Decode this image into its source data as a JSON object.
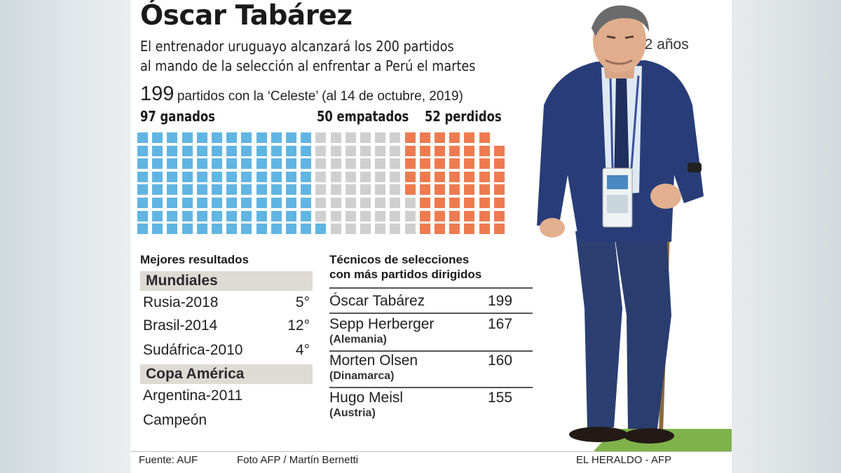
{
  "header": {
    "title": "Óscar Tabárez",
    "subtitle_line1": "El entrenador uruguayo alcanzará los 200 partidos",
    "subtitle_line2": "al mando de la selección al enfrentar a Perú el martes",
    "age": "72 años",
    "total_number": "199",
    "total_text": "partidos con la ‘Celeste’ (al 14 de octubre, 2019)"
  },
  "chart_data": {
    "type": "waffle",
    "total": 199,
    "categories": [
      {
        "label": "97 ganados",
        "value": 97,
        "color": "#61b5e2"
      },
      {
        "label": "50 empatados",
        "value": 50,
        "color": "#cfcfcf"
      },
      {
        "label": "52 perdidos",
        "value": 52,
        "color": "#ee7b50"
      }
    ]
  },
  "best_results": {
    "heading": "Mejores resultados",
    "mundiales": {
      "label": "Mundiales",
      "items": [
        {
          "name": "Rusia-2018",
          "result": "5°"
        },
        {
          "name": "Brasil-2014",
          "result": "12°"
        },
        {
          "name": "Sudáfrica-2010",
          "result": "4°"
        }
      ]
    },
    "copa": {
      "label": "Copa América",
      "name": "Argentina-2011",
      "result": "Campeón"
    }
  },
  "coaches": {
    "heading_line1": "Técnicos de selecciones",
    "heading_line2": "con más partidos dirigidos",
    "items": [
      {
        "name": "Óscar Tabárez",
        "country": "",
        "games": "199"
      },
      {
        "name": "Sepp Herberger",
        "country": "(Alemania)",
        "games": "167"
      },
      {
        "name": "Morten Olsen",
        "country": "(Dinamarca)",
        "games": "160"
      },
      {
        "name": "Hugo Meisl",
        "country": "(Austria)",
        "games": "155"
      }
    ]
  },
  "footer": {
    "source": "Fuente: AUF",
    "credit": "Foto AFP / Martín Bernetti",
    "publisher": "EL HERALDO - AFP"
  }
}
